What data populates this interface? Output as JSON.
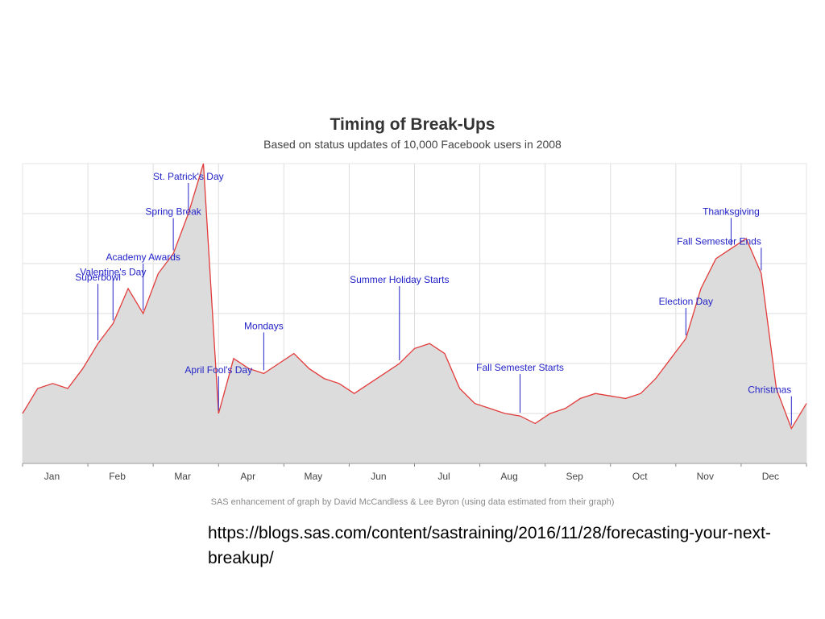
{
  "source_url": "https://blogs.sas.com/content/sastraining/2016/11/28/forecasting-your-next-breakup/",
  "colors": {
    "line": "#e33b3b",
    "area": "#dcdcdc",
    "annotation": "#2323c8",
    "grid": "#dedede"
  },
  "chart_data": {
    "type": "area",
    "title": "Timing of Break-Ups",
    "subtitle": "Based on status updates of 10,000 Facebook users in 2008",
    "credit": "SAS enhancement of graph by David McCandless & Lee Byron (using data estimated from their graph)",
    "xlabel": "",
    "ylabel": "",
    "x_unit": "week of 2008",
    "xlim": [
      1,
      53
    ],
    "ylim": [
      0,
      6
    ],
    "grid": true,
    "month_ticks": [
      "Jan",
      "Feb",
      "Mar",
      "Apr",
      "May",
      "Jun",
      "Jul",
      "Aug",
      "Sep",
      "Oct",
      "Nov",
      "Dec"
    ],
    "x": [
      1,
      2,
      3,
      4,
      5,
      6,
      7,
      8,
      9,
      10,
      11,
      12,
      13,
      14,
      15,
      16,
      17,
      18,
      19,
      20,
      21,
      22,
      23,
      24,
      25,
      26,
      27,
      28,
      29,
      30,
      31,
      32,
      33,
      34,
      35,
      36,
      37,
      38,
      39,
      40,
      41,
      42,
      43,
      44,
      45,
      46,
      47,
      48,
      49,
      50,
      51,
      52,
      53
    ],
    "values": [
      1.0,
      1.5,
      1.6,
      1.5,
      1.9,
      2.4,
      2.8,
      3.5,
      3.0,
      3.8,
      4.2,
      5.0,
      6.0,
      1.0,
      2.1,
      1.9,
      1.8,
      2.0,
      2.2,
      1.9,
      1.7,
      1.6,
      1.4,
      1.6,
      1.8,
      2.0,
      2.3,
      2.4,
      2.2,
      1.5,
      1.2,
      1.1,
      1.0,
      0.95,
      0.8,
      1.0,
      1.1,
      1.3,
      1.4,
      1.35,
      1.3,
      1.4,
      1.7,
      2.1,
      2.5,
      3.5,
      4.1,
      4.3,
      4.5,
      3.8,
      1.5,
      0.7,
      1.2
    ],
    "annotations": [
      {
        "label": "Superbowl",
        "x": 6
      },
      {
        "label": "Valentine's Day",
        "x": 7
      },
      {
        "label": "Academy Awards",
        "x": 9
      },
      {
        "label": "Spring Break",
        "x": 11
      },
      {
        "label": "St. Patrick's Day",
        "x": 12
      },
      {
        "label": "April Fool's Day",
        "x": 14
      },
      {
        "label": "Mondays",
        "x": 17
      },
      {
        "label": "Summer Holiday Starts",
        "x": 26
      },
      {
        "label": "Fall Semester Starts",
        "x": 34
      },
      {
        "label": "Election Day",
        "x": 45
      },
      {
        "label": "Thanksgiving",
        "x": 48
      },
      {
        "label": "Fall Semester Ends",
        "x": 50
      },
      {
        "label": "Christmas",
        "x": 52
      }
    ]
  }
}
